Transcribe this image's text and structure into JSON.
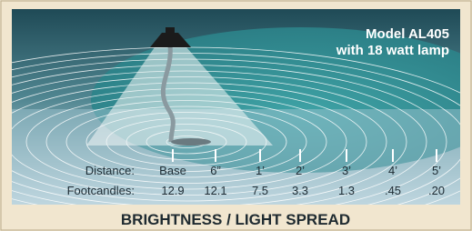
{
  "model": {
    "line1": "Model AL405",
    "line2": "with 18 watt lamp"
  },
  "table": {
    "distance_label": "Distance:",
    "footcandles_label": "Footcandles:",
    "distance": [
      "Base",
      "6”",
      "1’",
      "2’",
      "3’",
      "4’",
      "5’"
    ],
    "footcandles": [
      "12.9",
      "12.1",
      "7.5",
      "3.3",
      "1.3",
      ".45",
      ".20"
    ]
  },
  "caption": "BRIGHTNESS / LIGHT SPREAD"
}
